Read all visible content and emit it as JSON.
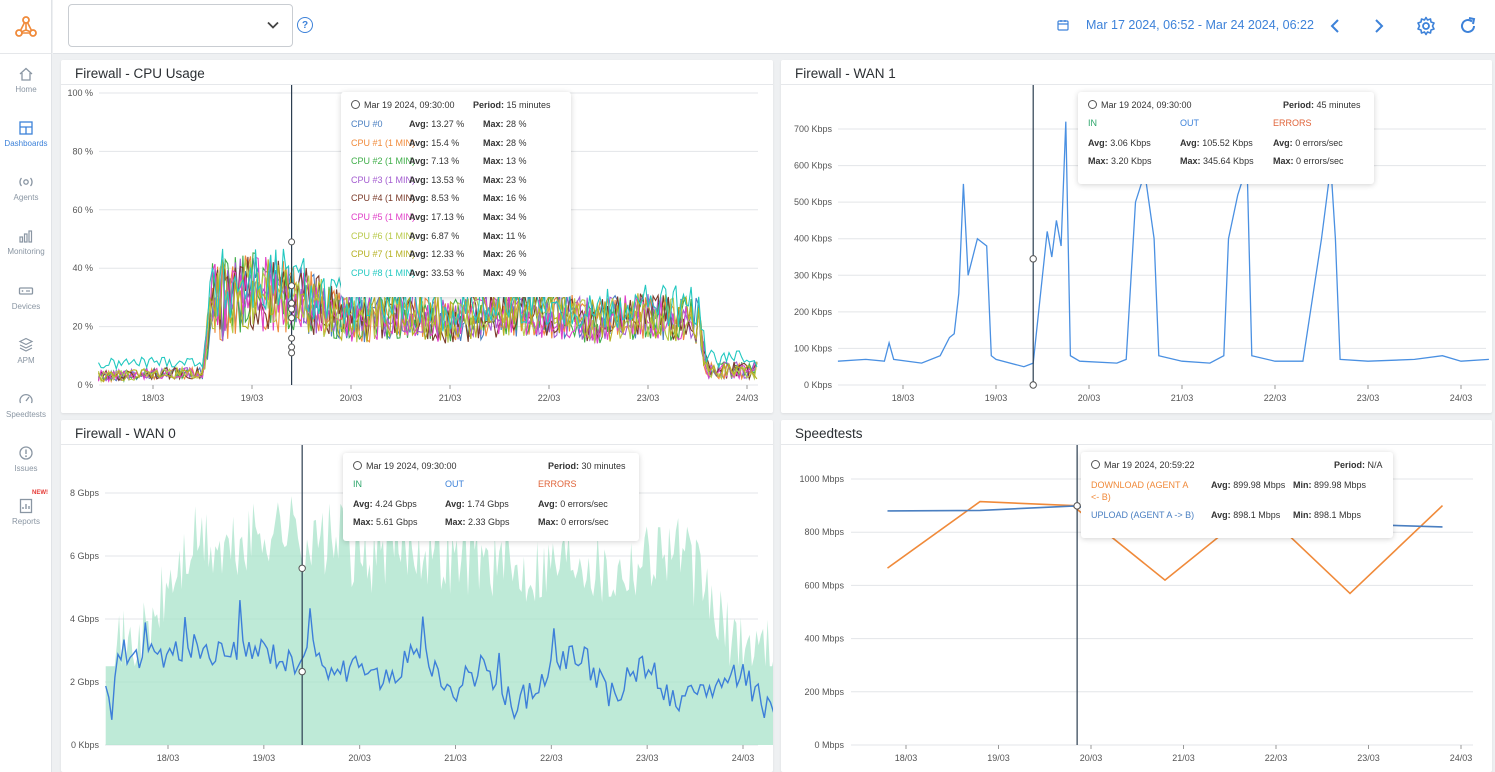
{
  "header": {
    "dashboard_select_value": "",
    "date_range": "Mar 17 2024, 06:52 - Mar 24 2024, 06:22"
  },
  "sidebar": {
    "items": [
      {
        "label": "Home",
        "icon": "home-icon"
      },
      {
        "label": "Dashboards",
        "icon": "dashboard-icon",
        "active": true
      },
      {
        "label": "Agents",
        "icon": "agents-icon"
      },
      {
        "label": "Monitoring",
        "icon": "monitoring-icon"
      },
      {
        "label": "Devices",
        "icon": "devices-icon"
      },
      {
        "label": "APM",
        "icon": "apm-icon"
      },
      {
        "label": "Speedtests",
        "icon": "speedtests-icon"
      },
      {
        "label": "Issues",
        "icon": "issues-icon"
      },
      {
        "label": "Reports",
        "icon": "reports-icon",
        "badge": "NEW!"
      }
    ]
  },
  "panels": {
    "cpu": {
      "title": "Firewall - CPU Usage",
      "tooltip": {
        "time": "Mar 19 2024, 09:30:00",
        "period_label": "Period:",
        "period_value": "15 minutes",
        "rows": [
          {
            "name": "CPU #0",
            "color": "#4a7fc1",
            "avg": "13.27 %",
            "max": "28 %"
          },
          {
            "name": "CPU #1 (1 MIN)",
            "color": "#f08a3a",
            "avg": "15.4 %",
            "max": "28 %"
          },
          {
            "name": "CPU #2 (1 MIN)",
            "color": "#3fae49",
            "avg": "7.13 %",
            "max": "13 %"
          },
          {
            "name": "CPU #3 (1 MIN)",
            "color": "#a35bd0",
            "avg": "13.53 %",
            "max": "23 %"
          },
          {
            "name": "CPU #4 (1 MIN)",
            "color": "#7a3a2a",
            "avg": "8.53 %",
            "max": "16 %"
          },
          {
            "name": "CPU #5 (1 MIN)",
            "color": "#e040c8",
            "avg": "17.13 %",
            "max": "34 %"
          },
          {
            "name": "CPU #6 (1 MIN)",
            "color": "#b8c94a",
            "avg": "6.87 %",
            "max": "11 %"
          },
          {
            "name": "CPU #7 (1 MIN)",
            "color": "#b5b021",
            "avg": "12.33 %",
            "max": "26 %"
          },
          {
            "name": "CPU #8 (1 MIN)",
            "color": "#22c8c0",
            "avg": "33.53 %",
            "max": "49 %"
          }
        ],
        "avg_label": "Avg:",
        "max_label": "Max:"
      }
    },
    "wan1": {
      "title": "Firewall - WAN 1",
      "tooltip": {
        "time": "Mar 19 2024, 09:30:00",
        "period_label": "Period:",
        "period_value": "45 minutes",
        "in_label": "IN",
        "out_label": "OUT",
        "errors_label": "ERRORS",
        "in_avg": "3.06 Kbps",
        "in_max": "3.20 Kbps",
        "out_avg": "105.52 Kbps",
        "out_max": "345.64 Kbps",
        "err_avg": "0 errors/sec",
        "err_max": "0 errors/sec",
        "avg_label": "Avg:",
        "max_label": "Max:"
      }
    },
    "wan0": {
      "title": "Firewall - WAN 0",
      "tooltip": {
        "time": "Mar 19 2024, 09:30:00",
        "period_label": "Period:",
        "period_value": "30 minutes",
        "in_label": "IN",
        "out_label": "OUT",
        "errors_label": "ERRORS",
        "in_avg": "4.24 Gbps",
        "in_max": "5.61 Gbps",
        "out_avg": "1.74 Gbps",
        "out_max": "2.33 Gbps",
        "err_avg": "0 errors/sec",
        "err_max": "0 errors/sec",
        "avg_label": "Avg:",
        "max_label": "Max:"
      }
    },
    "speed": {
      "title": "Speedtests",
      "tooltip": {
        "time": "Mar 19 2024, 20:59:22",
        "period_label": "Period:",
        "period_value": "N/A",
        "rows": [
          {
            "name1": "DOWNLOAD (AGENT A",
            "name2": "<- B)",
            "color": "#f08a3a",
            "avg": "899.98 Mbps",
            "min": "899.98 Mbps"
          },
          {
            "name1": "UPLOAD (AGENT A -> B)",
            "name2": "",
            "color": "#4a7fc1",
            "avg": "898.1 Mbps",
            "min": "898.1 Mbps"
          }
        ],
        "avg_label": "Avg:",
        "min_label": "Min:"
      }
    }
  },
  "chart_data": [
    {
      "type": "line",
      "title": "Firewall - CPU Usage",
      "x": [
        "18/03",
        "19/03",
        "20/03",
        "21/03",
        "22/03",
        "23/03",
        "24/03"
      ],
      "y_ticks": [
        "0 %",
        "20 %",
        "40 %",
        "60 %",
        "80 %",
        "100 %"
      ],
      "ylim": [
        0,
        100
      ],
      "series_approx": {
        "x_days": [
          17.3,
          17.5,
          18.0,
          18.5,
          18.6,
          19.0,
          19.5,
          20.0,
          20.5,
          21.0,
          21.5,
          22.0,
          22.5,
          23.0,
          23.5,
          23.6,
          24.0,
          24.3
        ],
        "level_pct": [
          3,
          3,
          4,
          4,
          28,
          32,
          30,
          22,
          24,
          22,
          24,
          24,
          22,
          24,
          22,
          5,
          5,
          5
        ],
        "spread_pct": [
          2,
          2,
          2,
          2,
          14,
          14,
          12,
          8,
          8,
          8,
          8,
          8,
          8,
          8,
          8,
          3,
          3,
          3
        ]
      },
      "series": [
        {
          "name": "CPU #0",
          "color": "#4a7fc1"
        },
        {
          "name": "CPU #1 (1 MIN)",
          "color": "#f08a3a"
        },
        {
          "name": "CPU #2 (1 MIN)",
          "color": "#3fae49"
        },
        {
          "name": "CPU #3 (1 MIN)",
          "color": "#a35bd0"
        },
        {
          "name": "CPU #4 (1 MIN)",
          "color": "#7a3a2a"
        },
        {
          "name": "CPU #5 (1 MIN)",
          "color": "#e040c8"
        },
        {
          "name": "CPU #6 (1 MIN)",
          "color": "#b8c94a"
        },
        {
          "name": "CPU #7 (1 MIN)",
          "color": "#b5b021"
        },
        {
          "name": "CPU #8 (1 MIN)",
          "color": "#22c8c0"
        }
      ],
      "cursor_x": "Mar 19 2024, 09:30:00"
    },
    {
      "type": "line",
      "title": "Firewall - WAN 1",
      "x": [
        "18/03",
        "19/03",
        "20/03",
        "21/03",
        "22/03",
        "23/03",
        "24/03"
      ],
      "y_ticks": [
        "0 Kbps",
        "100 Kbps",
        "200 Kbps",
        "300 Kbps",
        "400 Kbps",
        "500 Kbps",
        "600 Kbps",
        "700 Kbps"
      ],
      "ylim": [
        0,
        700
      ],
      "series": [
        {
          "name": "OUT",
          "color": "#4a90e2",
          "points": [
            [
              17.3,
              65
            ],
            [
              17.6,
              70
            ],
            [
              17.8,
              65
            ],
            [
              17.85,
              115
            ],
            [
              17.9,
              70
            ],
            [
              18.2,
              60
            ],
            [
              18.4,
              80
            ],
            [
              18.5,
              130
            ],
            [
              18.55,
              140
            ],
            [
              18.6,
              250
            ],
            [
              18.65,
              550
            ],
            [
              18.7,
              300
            ],
            [
              18.8,
              400
            ],
            [
              18.9,
              380
            ],
            [
              18.95,
              80
            ],
            [
              19.0,
              70
            ],
            [
              19.3,
              50
            ],
            [
              19.4,
              60
            ],
            [
              19.5,
              300
            ],
            [
              19.55,
              420
            ],
            [
              19.6,
              350
            ],
            [
              19.65,
              450
            ],
            [
              19.7,
              380
            ],
            [
              19.75,
              720
            ],
            [
              19.8,
              80
            ],
            [
              19.9,
              65
            ],
            [
              20.3,
              60
            ],
            [
              20.4,
              70
            ],
            [
              20.5,
              500
            ],
            [
              20.6,
              580
            ],
            [
              20.7,
              400
            ],
            [
              20.75,
              80
            ],
            [
              21.0,
              65
            ],
            [
              21.3,
              60
            ],
            [
              21.45,
              80
            ],
            [
              21.5,
              400
            ],
            [
              21.6,
              520
            ],
            [
              21.7,
              600
            ],
            [
              21.75,
              80
            ],
            [
              22.0,
              65
            ],
            [
              22.3,
              65
            ],
            [
              22.5,
              400
            ],
            [
              22.55,
              500
            ],
            [
              22.6,
              600
            ],
            [
              22.65,
              400
            ],
            [
              22.7,
              70
            ],
            [
              23.0,
              65
            ],
            [
              23.5,
              70
            ],
            [
              23.8,
              80
            ],
            [
              24.0,
              65
            ],
            [
              24.3,
              70
            ]
          ]
        }
      ],
      "cursor_x": "Mar 19 2024, 09:30:00"
    },
    {
      "type": "area",
      "title": "Firewall - WAN 0",
      "x": [
        "18/03",
        "19/03",
        "20/03",
        "21/03",
        "22/03",
        "23/03",
        "24/03"
      ],
      "y_ticks": [
        "0 Kbps",
        "2 Gbps",
        "4 Gbps",
        "6 Gbps",
        "8 Gbps"
      ],
      "ylim": [
        0,
        8
      ],
      "series": [
        {
          "name": "IN",
          "color": "#a8e3c9",
          "points": [
            [
              17.3,
              3.0
            ],
            [
              17.6,
              3.1
            ],
            [
              17.8,
              3.5
            ],
            [
              18.0,
              5.0
            ],
            [
              18.3,
              6.5
            ],
            [
              18.6,
              6.0
            ],
            [
              19.0,
              6.8
            ],
            [
              19.3,
              7.0
            ],
            [
              19.5,
              6.3
            ],
            [
              19.8,
              6.6
            ],
            [
              20.0,
              5.8
            ],
            [
              20.3,
              6.2
            ],
            [
              20.6,
              6.4
            ],
            [
              21.0,
              5.9
            ],
            [
              21.3,
              6.0
            ],
            [
              21.6,
              5.5
            ],
            [
              22.0,
              5.8
            ],
            [
              22.3,
              6.2
            ],
            [
              22.6,
              5.4
            ],
            [
              23.0,
              6.1
            ],
            [
              23.3,
              6.4
            ],
            [
              23.6,
              5.0
            ],
            [
              23.8,
              3.5
            ],
            [
              24.0,
              3.2
            ],
            [
              24.3,
              3.0
            ]
          ]
        },
        {
          "name": "OUT",
          "color": "#3d7fd9",
          "points": [
            [
              17.3,
              2.8
            ],
            [
              17.4,
              0.9
            ],
            [
              17.5,
              3.0
            ],
            [
              17.7,
              2.7
            ],
            [
              18.0,
              2.9
            ],
            [
              18.3,
              3.2
            ],
            [
              18.6,
              2.8
            ],
            [
              19.0,
              3.1
            ],
            [
              19.3,
              2.6
            ],
            [
              19.5,
              3.5
            ],
            [
              19.7,
              2.2
            ],
            [
              20.0,
              2.6
            ],
            [
              20.3,
              2.0
            ],
            [
              20.6,
              3.2
            ],
            [
              21.0,
              1.6
            ],
            [
              21.3,
              2.5
            ],
            [
              21.6,
              1.2
            ],
            [
              22.0,
              2.3
            ],
            [
              22.3,
              3.0
            ],
            [
              22.6,
              1.5
            ],
            [
              23.0,
              2.6
            ],
            [
              23.3,
              1.2
            ],
            [
              23.6,
              1.8
            ],
            [
              23.8,
              2.0
            ],
            [
              24.0,
              2.2
            ],
            [
              24.3,
              0.9
            ]
          ]
        }
      ],
      "cursor_x": "Mar 19 2024, 09:30:00"
    },
    {
      "type": "line",
      "title": "Speedtests",
      "x": [
        "18/03",
        "19/03",
        "20/03",
        "21/03",
        "22/03",
        "23/03",
        "24/03"
      ],
      "y_ticks": [
        "0 Mbps",
        "200 Mbps",
        "400 Mbps",
        "600 Mbps",
        "800 Mbps",
        "1000 Mbps"
      ],
      "ylim": [
        0,
        1000
      ],
      "series": [
        {
          "name": "DOWNLOAD (AGENT A <- B)",
          "color": "#f08a3a",
          "points": [
            [
              17.8,
              665
            ],
            [
              18.8,
              915
            ],
            [
              19.8,
              900
            ],
            [
              20.8,
              620
            ],
            [
              21.8,
              900
            ],
            [
              22.8,
              570
            ],
            [
              23.8,
              900
            ]
          ]
        },
        {
          "name": "UPLOAD (AGENT A -> B)",
          "color": "#4a7fc1",
          "points": [
            [
              17.8,
              880
            ],
            [
              18.8,
              882
            ],
            [
              19.8,
              898
            ],
            [
              20.8,
              860
            ],
            [
              21.8,
              840
            ],
            [
              22.8,
              830
            ],
            [
              23.8,
              820
            ]
          ]
        }
      ],
      "cursor_x": "Mar 19 2024, 20:59:22"
    }
  ]
}
